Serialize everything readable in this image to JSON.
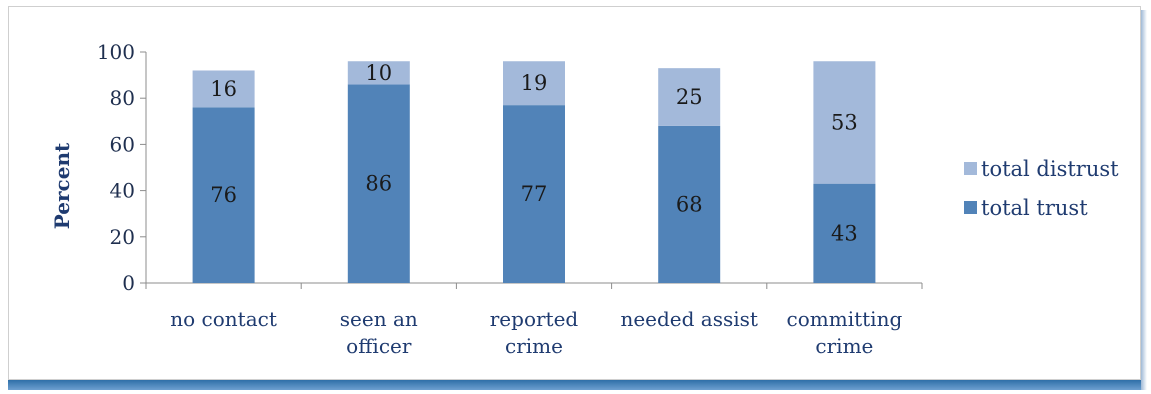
{
  "chart_data": {
    "type": "bar",
    "stacked": true,
    "title": "",
    "xlabel": "",
    "ylabel": "Percent",
    "ylim": [
      0,
      100
    ],
    "yticks": [
      0,
      20,
      40,
      60,
      80,
      100
    ],
    "grid": false,
    "legend_position": "right",
    "categories": [
      "no contact",
      "seen an officer",
      "reported crime",
      "needed assist",
      "committing crime"
    ],
    "category_lines": [
      [
        "no contact"
      ],
      [
        "seen an",
        "officer"
      ],
      [
        "reported",
        "crime"
      ],
      [
        "needed assist"
      ],
      [
        "committing",
        "crime"
      ]
    ],
    "series": [
      {
        "name": "total trust",
        "color": "#5183b8",
        "values": [
          76,
          86,
          77,
          68,
          43
        ]
      },
      {
        "name": "total distrust",
        "color": "#a3b9da",
        "values": [
          16,
          10,
          19,
          25,
          53
        ]
      }
    ]
  }
}
